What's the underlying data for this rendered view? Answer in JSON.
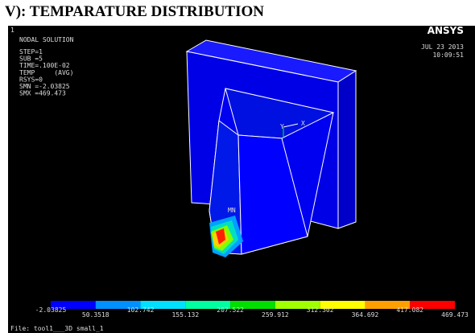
{
  "heading": "V): TEMPARATURE DISTRIBUTION",
  "plot": {
    "window_number": "1",
    "title": "NODAL SOLUTION",
    "info": [
      "STEP=1",
      "SUB =5",
      "TIME=.100E-02",
      "TEMP     (AVG)",
      "RSYS=0",
      "SMN =-2.03825",
      "SMX =469.473"
    ],
    "logo": "ANSYS",
    "date": "JUL 23 2013",
    "time": "10:09:51",
    "min_marker": "MN",
    "axis_x": "X",
    "axis_y": "Y"
  },
  "legend": {
    "labels": [
      "-2.03825",
      "50.3518",
      "102.742",
      "155.132",
      "207.522",
      "259.912",
      "312.302",
      "364.692",
      "417.082",
      "469.473"
    ]
  },
  "file": "File: tool1___3D small_1"
}
